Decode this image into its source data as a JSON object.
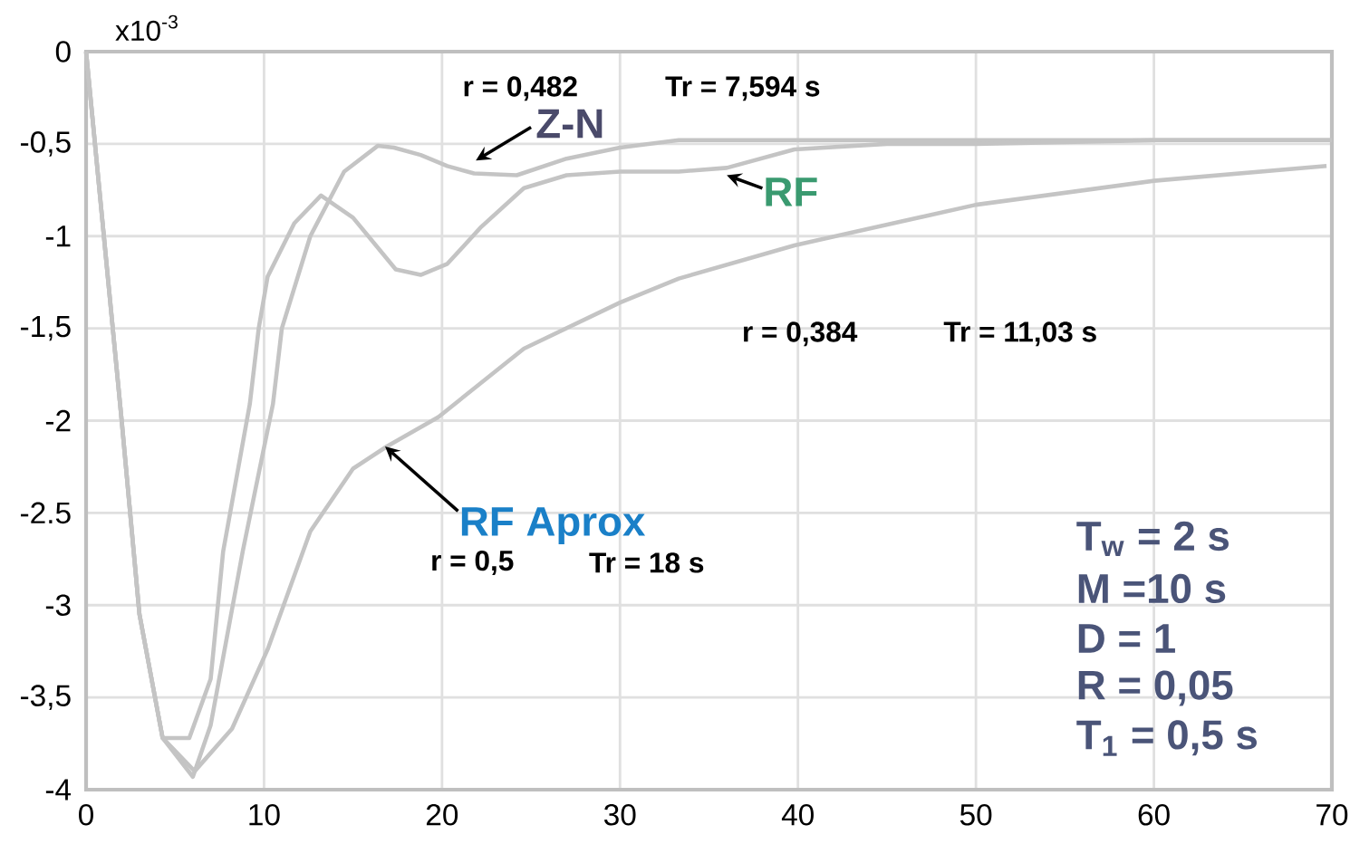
{
  "chart_data": {
    "type": "line",
    "xlim": [
      0,
      70
    ],
    "ylim": [
      -4,
      0
    ],
    "xticks": [
      0,
      10,
      20,
      30,
      40,
      50,
      60,
      70
    ],
    "yticks": [
      -4,
      {
        "value": -3.5,
        "label": "-3,5"
      },
      -3,
      -2.5,
      -2,
      {
        "value": -1.5,
        "label": "-1,5"
      },
      -1,
      {
        "value": -0.5,
        "label": "-0,5"
      },
      0
    ],
    "grid": true,
    "line_style": "solid",
    "series": [
      {
        "name": "Z-N",
        "color": "#c4c4c4",
        "x": [
          0,
          1,
          2,
          3,
          4.3,
          6,
          7,
          8.8,
          10.5,
          11,
          12.6,
          14.5,
          16.4,
          17.3,
          18.8,
          20.3,
          21.8,
          24.2,
          27,
          30,
          33.3,
          40,
          50,
          70
        ],
        "values": [
          0,
          -1,
          -2,
          -3.05,
          -3.72,
          -3.93,
          -3.65,
          -2.71,
          -1.91,
          -1.5,
          -1.0,
          -0.65,
          -0.51,
          -0.52,
          -0.56,
          -0.62,
          -0.66,
          -0.67,
          -0.58,
          -0.52,
          -0.48,
          -0.48,
          -0.48,
          -0.48
        ]
      },
      {
        "name": "RF",
        "color": "#c4c4c4",
        "x": [
          0,
          1,
          2,
          3,
          4.3,
          5.8,
          7,
          7.7,
          9.2,
          9.7,
          10.2,
          11.7,
          13.2,
          15,
          17.4,
          18.8,
          20.3,
          22.2,
          24.6,
          27,
          30,
          33.3,
          36,
          39.8,
          45,
          50,
          60,
          70
        ],
        "values": [
          0,
          -1,
          -2,
          -3.05,
          -3.72,
          -3.72,
          -3.4,
          -2.71,
          -1.91,
          -1.5,
          -1.22,
          -0.93,
          -0.78,
          -0.9,
          -1.18,
          -1.21,
          -1.15,
          -0.95,
          -0.74,
          -0.67,
          -0.65,
          -0.65,
          -0.63,
          -0.53,
          -0.5,
          -0.5,
          -0.48,
          -0.48
        ]
      },
      {
        "name": "RF Aprox",
        "color": "#c4c4c4",
        "x": [
          0,
          1,
          2,
          3,
          4.3,
          6.1,
          8.2,
          10.2,
          12.6,
          15,
          16.9,
          19.8,
          24.6,
          30,
          33.3,
          39.8,
          50,
          60,
          69.7
        ],
        "values": [
          0,
          -1,
          -2,
          -3.05,
          -3.72,
          -3.9,
          -3.67,
          -3.24,
          -2.6,
          -2.26,
          -2.14,
          -1.98,
          -1.61,
          -1.36,
          -1.23,
          -1.05,
          -0.83,
          -0.7,
          -0.62
        ]
      }
    ],
    "annotations": [
      "x10$^{-3}$",
      "r = 0,482",
      "Tr = 7,594 s",
      "r = 0,384",
      "Tr = 11,03 s",
      "r = 0,5",
      "Tr = 18 s",
      "T$_{w}$ = 2 s",
      "M =10 s",
      "D = 1",
      "R = 0,05",
      "T$_{1}$ = 0,5 s"
    ]
  }
}
